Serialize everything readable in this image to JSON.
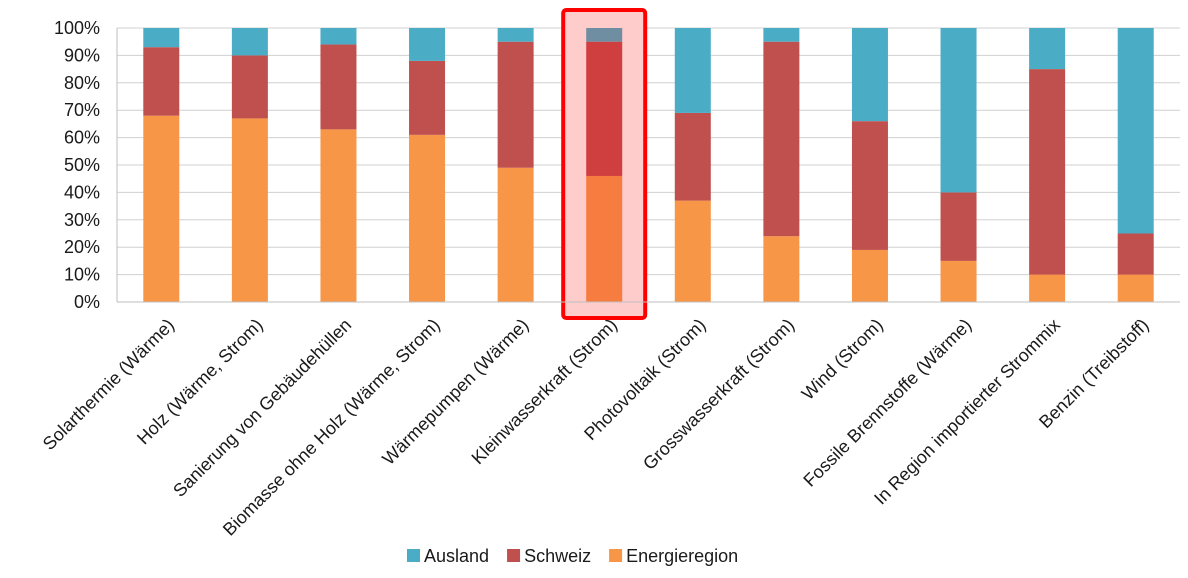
{
  "chart_data": {
    "type": "bar",
    "stacked": true,
    "categories": [
      "Solarthermie (Wärme)",
      "Holz (Wärme, Strom)",
      "Sanierung von Gebäudehüllen",
      "Biomasse ohne Holz (Wärme, Strom)",
      "Wärmepumpen (Wärme)",
      "Kleinwasserkraft (Strom)",
      "Photovoltaik (Strom)",
      "Grosswasserkraft (Strom)",
      "Wind (Strom)",
      "Fossile Brennstoffe (Wärme)",
      "In Region importierter Strommix",
      "Benzin (Treibstoff)"
    ],
    "series": [
      {
        "name": "Energieregion",
        "color": "#f79646",
        "values": [
          68,
          67,
          63,
          61,
          49,
          46,
          37,
          24,
          19,
          15,
          10,
          10
        ]
      },
      {
        "name": "Schweiz",
        "color": "#c0504d",
        "values": [
          25,
          23,
          31,
          27,
          46,
          49,
          32,
          71,
          47,
          25,
          75,
          15
        ]
      },
      {
        "name": "Ausland",
        "color": "#4bacc6",
        "values": [
          7,
          10,
          6,
          12,
          5,
          5,
          31,
          5,
          34,
          60,
          15,
          75
        ]
      }
    ],
    "ylim": [
      0,
      100
    ],
    "yticks": [
      "0%",
      "10%",
      "20%",
      "30%",
      "40%",
      "50%",
      "60%",
      "70%",
      "80%",
      "90%",
      "100%"
    ],
    "legend_order": [
      "Ausland",
      "Schweiz",
      "Energieregion"
    ],
    "legend_position": "bottom",
    "highlight": {
      "category": "Kleinwasserkraft (Strom)",
      "border_color": "#ff0000",
      "fill_color": "#ffcccc",
      "colors": {
        "Energieregion": "#f77c3f",
        "Schweiz": "#d03f3f",
        "Ausland": "#6f8ea1"
      }
    },
    "grid": true,
    "title": ""
  }
}
